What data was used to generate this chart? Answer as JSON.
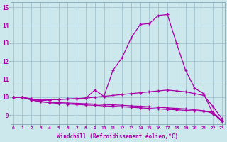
{
  "xlabel": "Windchill (Refroidissement éolien,°C)",
  "x_values": [
    0,
    1,
    2,
    3,
    4,
    5,
    6,
    7,
    8,
    9,
    10,
    11,
    12,
    13,
    14,
    15,
    16,
    17,
    18,
    19,
    20,
    21,
    22,
    23
  ],
  "line1": [
    10.0,
    10.0,
    9.9,
    9.8,
    9.85,
    9.88,
    9.9,
    9.92,
    9.95,
    10.0,
    10.05,
    10.1,
    10.15,
    10.2,
    10.25,
    10.3,
    10.35,
    10.4,
    10.35,
    10.3,
    10.2,
    10.1,
    9.5,
    8.8
  ],
  "line2": [
    10.0,
    10.0,
    9.85,
    9.75,
    9.7,
    9.65,
    9.62,
    9.6,
    9.57,
    9.55,
    9.52,
    9.5,
    9.47,
    9.44,
    9.41,
    9.38,
    9.35,
    9.32,
    9.3,
    9.27,
    9.24,
    9.21,
    9.18,
    8.7
  ],
  "line3": [
    10.0,
    10.0,
    9.85,
    9.75,
    9.72,
    9.7,
    9.68,
    9.66,
    9.64,
    9.62,
    9.6,
    9.58,
    9.55,
    9.52,
    9.5,
    9.47,
    9.44,
    9.41,
    9.38,
    9.35,
    9.3,
    9.25,
    9.1,
    8.65
  ],
  "line4": [
    10.0,
    10.0,
    9.9,
    9.85,
    9.85,
    9.88,
    9.9,
    9.92,
    9.95,
    10.4,
    10.05,
    11.5,
    12.2,
    13.3,
    14.05,
    14.1,
    14.55,
    14.6,
    13.0,
    11.5,
    10.5,
    10.2,
    9.1,
    8.7
  ],
  "bg_color": "#cce8ec",
  "line_color": "#aa00aa",
  "ylim": [
    8.5,
    15.3
  ],
  "xlim": [
    -0.3,
    23.3
  ],
  "yticks": [
    9,
    10,
    11,
    12,
    13,
    14,
    15
  ],
  "xticks": [
    0,
    1,
    2,
    3,
    4,
    5,
    6,
    7,
    8,
    9,
    10,
    11,
    12,
    13,
    14,
    15,
    16,
    17,
    18,
    19,
    20,
    21,
    22,
    23
  ]
}
